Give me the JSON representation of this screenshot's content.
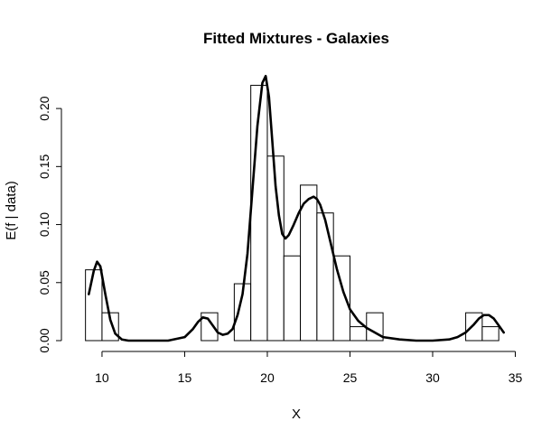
{
  "chart_data": {
    "type": "bar",
    "title": "Fitted Mixtures - Galaxies",
    "xlabel": "X",
    "ylabel": "E(f | data)",
    "xlim": [
      8.2,
      35.3
    ],
    "ylim": [
      0,
      0.232
    ],
    "xticks": [
      10,
      15,
      20,
      25,
      30,
      35
    ],
    "yticks": [
      0.0,
      0.05,
      0.1,
      0.15,
      0.2
    ],
    "ytick_labels": [
      "0.00",
      "0.05",
      "0.10",
      "0.15",
      "0.20"
    ],
    "grid": false,
    "histogram": {
      "bins": [
        {
          "x0": 9,
          "x1": 10,
          "density": 0.061
        },
        {
          "x0": 10,
          "x1": 11,
          "density": 0.024
        },
        {
          "x0": 16,
          "x1": 17,
          "density": 0.024
        },
        {
          "x0": 18,
          "x1": 19,
          "density": 0.049
        },
        {
          "x0": 19,
          "x1": 20,
          "density": 0.22
        },
        {
          "x0": 20,
          "x1": 21,
          "density": 0.159
        },
        {
          "x0": 21,
          "x1": 22,
          "density": 0.073
        },
        {
          "x0": 22,
          "x1": 23,
          "density": 0.134
        },
        {
          "x0": 23,
          "x1": 24,
          "density": 0.11
        },
        {
          "x0": 24,
          "x1": 25,
          "density": 0.073
        },
        {
          "x0": 25,
          "x1": 26,
          "density": 0.012
        },
        {
          "x0": 26,
          "x1": 27,
          "density": 0.024
        },
        {
          "x0": 32,
          "x1": 33,
          "density": 0.024
        },
        {
          "x0": 33,
          "x1": 34,
          "density": 0.012
        }
      ]
    },
    "fitted_curve": {
      "type": "line",
      "x": [
        9.2,
        9.5,
        9.7,
        9.9,
        10.2,
        10.5,
        10.8,
        11.2,
        11.6,
        12.0,
        13.0,
        14.0,
        15.0,
        15.5,
        15.8,
        16.1,
        16.4,
        16.7,
        17.0,
        17.3,
        17.6,
        17.9,
        18.2,
        18.5,
        18.8,
        19.1,
        19.4,
        19.7,
        19.9,
        20.1,
        20.3,
        20.5,
        20.7,
        20.9,
        21.1,
        21.3,
        21.6,
        21.9,
        22.2,
        22.5,
        22.8,
        23.0,
        23.2,
        23.5,
        23.8,
        24.2,
        24.6,
        25.0,
        25.5,
        26.0,
        26.5,
        27.0,
        28.0,
        29.0,
        30.0,
        31.0,
        31.5,
        32.0,
        32.5,
        32.8,
        33.1,
        33.4,
        33.7,
        34.0,
        34.3
      ],
      "y": [
        0.04,
        0.06,
        0.068,
        0.064,
        0.04,
        0.018,
        0.006,
        0.001,
        0.0,
        0.0,
        0.0,
        0.0,
        0.003,
        0.01,
        0.016,
        0.02,
        0.019,
        0.013,
        0.007,
        0.005,
        0.006,
        0.01,
        0.022,
        0.04,
        0.075,
        0.13,
        0.185,
        0.222,
        0.228,
        0.21,
        0.172,
        0.133,
        0.108,
        0.092,
        0.088,
        0.091,
        0.1,
        0.11,
        0.118,
        0.122,
        0.124,
        0.122,
        0.117,
        0.104,
        0.086,
        0.062,
        0.042,
        0.027,
        0.017,
        0.011,
        0.007,
        0.003,
        0.001,
        0.0,
        0.0,
        0.001,
        0.003,
        0.007,
        0.014,
        0.019,
        0.022,
        0.022,
        0.019,
        0.013,
        0.007
      ]
    }
  }
}
